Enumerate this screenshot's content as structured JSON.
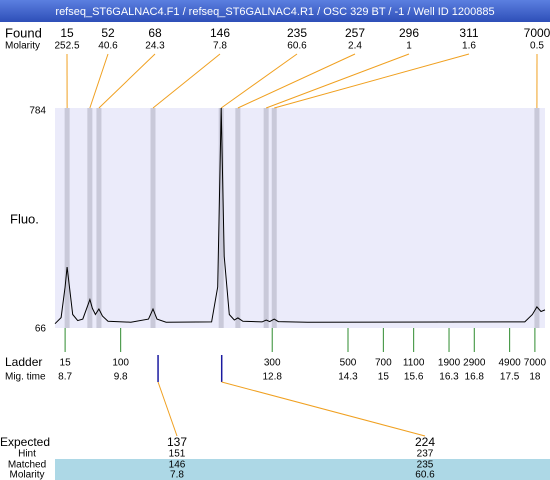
{
  "title": "refseq_ST6GALNAC4.F1 / refseq_ST6GALNAC4.R1 / OSC 329 BT / -1 / Well ID 1200885",
  "chart_data": {
    "type": "line",
    "ylabel": "Fluo.",
    "ylim": [
      66,
      784
    ],
    "yticks": [
      784,
      66
    ],
    "xlim": [
      8.5,
      18.2
    ],
    "color": "#000000",
    "x": [
      8.5,
      8.62,
      8.7,
      8.74,
      8.78,
      8.85,
      8.95,
      9.05,
      9.15,
      9.19,
      9.24,
      9.3,
      9.37,
      9.44,
      9.55,
      10.0,
      10.35,
      10.44,
      10.52,
      10.7,
      11.6,
      11.72,
      11.79,
      11.85,
      11.95,
      12.05,
      12.12,
      12.22,
      12.6,
      12.68,
      12.75,
      12.84,
      12.92,
      13.5,
      17.8,
      17.95,
      18.04,
      18.12,
      18.2
    ],
    "values": [
      80,
      100,
      200,
      265,
      210,
      110,
      90,
      95,
      140,
      159,
      130,
      110,
      128,
      105,
      88,
      85,
      95,
      128,
      95,
      85,
      86,
      200,
      784,
      300,
      110,
      92,
      99,
      88,
      86,
      92,
      87,
      95,
      87,
      85,
      86,
      110,
      135,
      120,
      125
    ]
  },
  "found": {
    "label": "Found",
    "molarity_label": "Molarity",
    "sizes": [
      15,
      52,
      68,
      146,
      235,
      257,
      296,
      311,
      7000
    ],
    "molarity": [
      252.5,
      40.6,
      24.3,
      7.8,
      60.6,
      2.4,
      1,
      1.6,
      0.5
    ],
    "times": [
      8.74,
      9.19,
      9.37,
      10.44,
      11.79,
      12.12,
      12.68,
      12.84,
      18.04
    ]
  },
  "ladder": {
    "label": "Ladder",
    "time_label": "Mig. time",
    "sizes": [
      15,
      100,
      300,
      500,
      700,
      1100,
      1900,
      2900,
      4900,
      7000
    ],
    "times": [
      8.7,
      9.8,
      12.8,
      14.3,
      15,
      15.6,
      16.3,
      16.8,
      17.5,
      18
    ]
  },
  "expected": {
    "label": "Expected",
    "hint_label": "Hint",
    "matched_label": "Matched",
    "molarity_label": "Molarity",
    "sizes": [
      137,
      224
    ],
    "times": [
      10.54,
      11.8
    ],
    "hint": [
      151,
      237
    ],
    "matched": [
      146,
      235
    ],
    "molarity": [
      7.8,
      60.6
    ]
  }
}
